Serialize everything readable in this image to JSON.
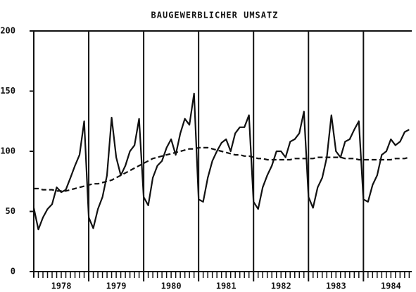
{
  "chart_data": {
    "type": "line",
    "title": "BAUGEWERBLICHER UMSATZ",
    "x": [
      1978.0,
      1978.083,
      1978.167,
      1978.25,
      1978.333,
      1978.417,
      1978.5,
      1978.583,
      1978.667,
      1978.75,
      1978.833,
      1978.917,
      1979.0,
      1979.083,
      1979.167,
      1979.25,
      1979.333,
      1979.417,
      1979.5,
      1979.583,
      1979.667,
      1979.75,
      1979.833,
      1979.917,
      1980.0,
      1980.083,
      1980.167,
      1980.25,
      1980.333,
      1980.417,
      1980.5,
      1980.583,
      1980.667,
      1980.75,
      1980.833,
      1980.917,
      1981.0,
      1981.083,
      1981.167,
      1981.25,
      1981.333,
      1981.417,
      1981.5,
      1981.583,
      1981.667,
      1981.75,
      1981.833,
      1981.917,
      1982.0,
      1982.083,
      1982.167,
      1982.25,
      1982.333,
      1982.417,
      1982.5,
      1982.583,
      1982.667,
      1982.75,
      1982.833,
      1982.917,
      1983.0,
      1983.083,
      1983.167,
      1983.25,
      1983.333,
      1983.417,
      1983.5,
      1983.583,
      1983.667,
      1983.75,
      1983.833,
      1983.917,
      1984.0,
      1984.083,
      1984.167,
      1984.25,
      1984.333,
      1984.417,
      1984.5,
      1984.583,
      1984.667,
      1984.75,
      1984.833
    ],
    "series": [
      {
        "color": "#111111",
        "dashed": false,
        "values": [
          53,
          35,
          45,
          52,
          56,
          70,
          66,
          68,
          78,
          88,
          97,
          125,
          45,
          36,
          52,
          62,
          80,
          128,
          95,
          80,
          88,
          100,
          105,
          127,
          62,
          55,
          78,
          88,
          92,
          103,
          110,
          97,
          115,
          127,
          122,
          148,
          60,
          58,
          78,
          92,
          100,
          107,
          110,
          100,
          115,
          120,
          120,
          130,
          58,
          52,
          70,
          80,
          88,
          100,
          100,
          95,
          108,
          110,
          115,
          133,
          62,
          53,
          70,
          78,
          95,
          130,
          100,
          95,
          108,
          110,
          118,
          125,
          60,
          58,
          72,
          80,
          97,
          100,
          110,
          105,
          108,
          116,
          118
        ]
      },
      {
        "color": "#111111",
        "dashed": true,
        "values": [
          69,
          69,
          68,
          68,
          68,
          67,
          67,
          67,
          68,
          69,
          70,
          71,
          72,
          73,
          73,
          74,
          75,
          76,
          78,
          80,
          82,
          84,
          86,
          88,
          90,
          92,
          94,
          95,
          96,
          97,
          98,
          99,
          100,
          101,
          102,
          102,
          103,
          103,
          103,
          102,
          101,
          100,
          99,
          98,
          97,
          97,
          96,
          96,
          95,
          94,
          94,
          93,
          93,
          93,
          93,
          93,
          93,
          94,
          94,
          94,
          94,
          94,
          95,
          95,
          95,
          95,
          95,
          95,
          94,
          94,
          94,
          93,
          93,
          93,
          93,
          93,
          93,
          93,
          93,
          94,
          94,
          94,
          95
        ]
      }
    ],
    "xlim": [
      1978,
      1984.88
    ],
    "xticks": [
      {
        "value": 1978.5,
        "label": "1978"
      },
      {
        "value": 1979.5,
        "label": "1979"
      },
      {
        "value": 1980.5,
        "label": "1980"
      },
      {
        "value": 1981.5,
        "label": "1981"
      },
      {
        "value": 1982.5,
        "label": "1982"
      },
      {
        "value": 1983.5,
        "label": "1983"
      },
      {
        "value": 1984.5,
        "label": "1984"
      }
    ],
    "ylim": [
      0,
      200
    ],
    "yticks": [
      0,
      50,
      100,
      150,
      200
    ]
  }
}
